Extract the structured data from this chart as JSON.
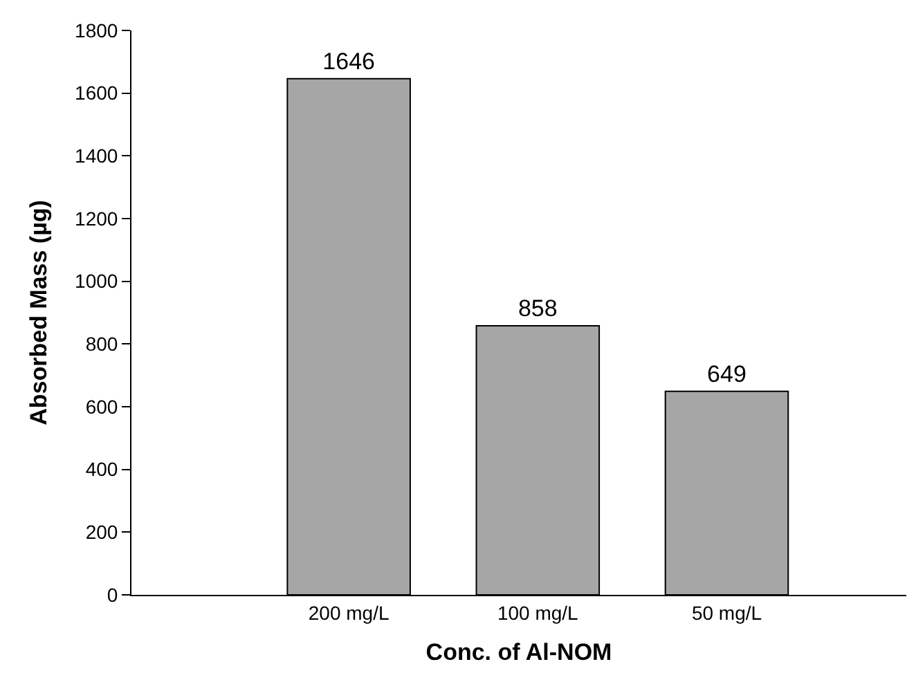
{
  "chart_data": {
    "type": "bar",
    "xlabel": "Conc. of Al-NOM",
    "ylabel": "Absorbed Mass (µg)",
    "categories": [
      "200 mg/L",
      "100 mg/L",
      "50 mg/L"
    ],
    "values": [
      1646,
      858,
      649
    ],
    "color": "#a6a6a6",
    "ylim": [
      0,
      1800
    ],
    "yticks": [
      0,
      200,
      400,
      600,
      800,
      1000,
      1200,
      1400,
      1600,
      1800
    ],
    "data_labels": true
  }
}
